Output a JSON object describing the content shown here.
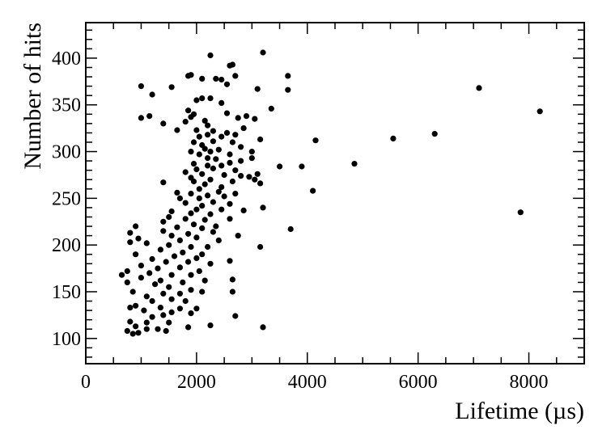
{
  "chart_data": {
    "type": "scatter",
    "title": "",
    "xlabel": "Lifetime (µs)",
    "ylabel": "Number of hits",
    "xlim": [
      0,
      9000
    ],
    "ylim": [
      73,
      438
    ],
    "x_ticks": [
      0,
      2000,
      4000,
      6000,
      8000
    ],
    "x_tick_labels": [
      "0",
      "2000",
      "4000",
      "6000",
      "8000"
    ],
    "y_ticks": [
      100,
      150,
      200,
      250,
      300,
      350,
      400
    ],
    "y_tick_labels": [
      "100",
      "150",
      "200",
      "250",
      "300",
      "350",
      "400"
    ],
    "grid": false,
    "legend": "none",
    "marker_color": "#000000",
    "points": [
      [
        2250,
        403
      ],
      [
        3200,
        406
      ],
      [
        2650,
        393
      ],
      [
        2600,
        392
      ],
      [
        1900,
        382
      ],
      [
        1850,
        381
      ],
      [
        3650,
        381
      ],
      [
        2100,
        378
      ],
      [
        2350,
        378
      ],
      [
        2450,
        377
      ],
      [
        2700,
        381
      ],
      [
        2550,
        372
      ],
      [
        1000,
        370
      ],
      [
        1550,
        369
      ],
      [
        3100,
        367
      ],
      [
        3650,
        366
      ],
      [
        7100,
        368
      ],
      [
        1200,
        361
      ],
      [
        2100,
        357
      ],
      [
        2250,
        357
      ],
      [
        2000,
        355
      ],
      [
        2450,
        352
      ],
      [
        3350,
        346
      ],
      [
        8200,
        343
      ],
      [
        1850,
        344
      ],
      [
        1950,
        340
      ],
      [
        2550,
        341
      ],
      [
        2900,
        338
      ],
      [
        1000,
        336
      ],
      [
        1150,
        338
      ],
      [
        1900,
        337
      ],
      [
        2750,
        336
      ],
      [
        3050,
        335
      ],
      [
        1400,
        330
      ],
      [
        1800,
        332
      ],
      [
        2150,
        333
      ],
      [
        2200,
        328
      ],
      [
        2850,
        325
      ],
      [
        1650,
        323
      ],
      [
        2000,
        323
      ],
      [
        2300,
        322
      ],
      [
        2550,
        320
      ],
      [
        2200,
        318
      ],
      [
        2700,
        318
      ],
      [
        6300,
        319
      ],
      [
        2050,
        316
      ],
      [
        2450,
        316
      ],
      [
        3150,
        313
      ],
      [
        4150,
        312
      ],
      [
        5550,
        314
      ],
      [
        1950,
        310
      ],
      [
        2300,
        311
      ],
      [
        2650,
        310
      ],
      [
        2100,
        307
      ],
      [
        2800,
        305
      ],
      [
        2150,
        303
      ],
      [
        2400,
        302
      ],
      [
        1900,
        300
      ],
      [
        2250,
        300
      ],
      [
        2600,
        297
      ],
      [
        3000,
        300
      ],
      [
        2050,
        297
      ],
      [
        2200,
        293
      ],
      [
        2350,
        292
      ],
      [
        2800,
        290
      ],
      [
        3000,
        293
      ],
      [
        1950,
        287
      ],
      [
        2200,
        285
      ],
      [
        2450,
        285
      ],
      [
        2600,
        288
      ],
      [
        3500,
        284
      ],
      [
        3900,
        284
      ],
      [
        4850,
        287
      ],
      [
        2000,
        281
      ],
      [
        2300,
        282
      ],
      [
        2700,
        280
      ],
      [
        1800,
        278
      ],
      [
        2100,
        276
      ],
      [
        2500,
        275
      ],
      [
        2800,
        274
      ],
      [
        3100,
        276
      ],
      [
        1900,
        272
      ],
      [
        2250,
        270
      ],
      [
        2650,
        268
      ],
      [
        2950,
        273
      ],
      [
        3050,
        270
      ],
      [
        1400,
        267
      ],
      [
        1950,
        268
      ],
      [
        2150,
        265
      ],
      [
        2450,
        262
      ],
      [
        3150,
        266
      ],
      [
        2050,
        260
      ],
      [
        2400,
        257
      ],
      [
        2700,
        255
      ],
      [
        4100,
        258
      ],
      [
        1650,
        256
      ],
      [
        1900,
        255
      ],
      [
        2200,
        253
      ],
      [
        1700,
        250
      ],
      [
        2050,
        250
      ],
      [
        2500,
        252
      ],
      [
        2300,
        246
      ],
      [
        2600,
        244
      ],
      [
        1800,
        245
      ],
      [
        2100,
        242
      ],
      [
        2000,
        238
      ],
      [
        2450,
        238
      ],
      [
        2850,
        237
      ],
      [
        3200,
        240
      ],
      [
        7850,
        235
      ],
      [
        1550,
        236
      ],
      [
        1900,
        234
      ],
      [
        2250,
        233
      ],
      [
        1500,
        230
      ],
      [
        1800,
        228
      ],
      [
        2150,
        227
      ],
      [
        2600,
        228
      ],
      [
        1400,
        225
      ],
      [
        1950,
        222
      ],
      [
        2350,
        220
      ],
      [
        900,
        220
      ],
      [
        1650,
        219
      ],
      [
        2100,
        218
      ],
      [
        3700,
        217
      ],
      [
        1400,
        215
      ],
      [
        1850,
        212
      ],
      [
        2300,
        214
      ],
      [
        800,
        213
      ],
      [
        1550,
        210
      ],
      [
        2000,
        208
      ],
      [
        2750,
        210
      ],
      [
        950,
        207
      ],
      [
        1700,
        205
      ],
      [
        2400,
        205
      ],
      [
        1100,
        202
      ],
      [
        1500,
        200
      ],
      [
        1900,
        198
      ],
      [
        2200,
        198
      ],
      [
        3150,
        198
      ],
      [
        800,
        203
      ],
      [
        1350,
        195
      ],
      [
        1750,
        192
      ],
      [
        2100,
        190
      ],
      [
        900,
        190
      ],
      [
        1600,
        188
      ],
      [
        2000,
        186
      ],
      [
        1200,
        185
      ],
      [
        1450,
        182
      ],
      [
        1850,
        182
      ],
      [
        2250,
        180
      ],
      [
        2600,
        183
      ],
      [
        1000,
        178
      ],
      [
        1300,
        175
      ],
      [
        1700,
        176
      ],
      [
        2050,
        172
      ],
      [
        750,
        172
      ],
      [
        1150,
        170
      ],
      [
        1550,
        168
      ],
      [
        1900,
        168
      ],
      [
        650,
        168
      ],
      [
        1000,
        165
      ],
      [
        1350,
        162
      ],
      [
        1750,
        160
      ],
      [
        2150,
        162
      ],
      [
        2650,
        163
      ],
      [
        750,
        160
      ],
      [
        1250,
        158
      ],
      [
        1500,
        155
      ],
      [
        1900,
        152
      ],
      [
        850,
        150
      ],
      [
        1400,
        148
      ],
      [
        1700,
        148
      ],
      [
        2100,
        150
      ],
      [
        2650,
        150
      ],
      [
        1100,
        145
      ],
      [
        1550,
        142
      ],
      [
        1200,
        140
      ],
      [
        1800,
        140
      ],
      [
        900,
        135
      ],
      [
        1350,
        133
      ],
      [
        1700,
        132
      ],
      [
        2000,
        132
      ],
      [
        800,
        133
      ],
      [
        1050,
        130
      ],
      [
        1550,
        128
      ],
      [
        1900,
        127
      ],
      [
        1400,
        125
      ],
      [
        1200,
        123
      ],
      [
        2700,
        124
      ],
      [
        800,
        118
      ],
      [
        1100,
        117
      ],
      [
        1500,
        117
      ],
      [
        2250,
        114
      ],
      [
        3200,
        112
      ],
      [
        900,
        113
      ],
      [
        1300,
        110
      ],
      [
        1850,
        112
      ],
      [
        750,
        108
      ],
      [
        1100,
        110
      ],
      [
        1450,
        108
      ],
      [
        850,
        105
      ],
      [
        950,
        106
      ]
    ]
  }
}
